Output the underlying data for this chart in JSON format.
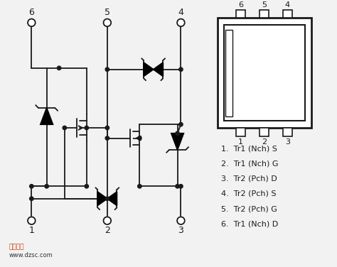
{
  "bg_color": "#f2f2f2",
  "line_color": "#1a1a1a",
  "text_color": "#1a1a1a",
  "legend_lines": [
    "1.  Tr1 (Nch) S",
    "2.  Tr1 (Nch) G",
    "3.  Tr2 (Pch) D",
    "4.  Tr2 (Pch) S",
    "5.  Tr2 (Pch) G",
    "6.  Tr1 (Nch) D"
  ],
  "watermark_text": "www.dzsc.com"
}
